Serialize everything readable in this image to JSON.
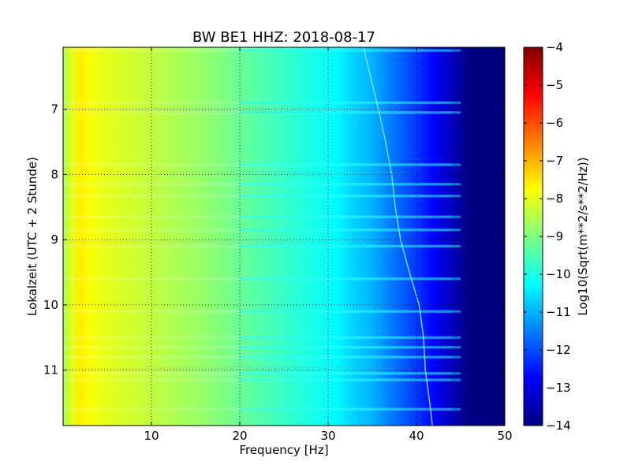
{
  "chart_data": {
    "type": "heatmap",
    "title": "BW BE1 HHZ: 2018-08-17",
    "xlabel": "Frequency [Hz]",
    "ylabel": "Lokalzeit (UTC + 2 Stunde)",
    "xlim": [
      0,
      50
    ],
    "ylim": [
      11.85,
      6.05
    ],
    "x_ticks": [
      10,
      20,
      30,
      40,
      50
    ],
    "y_ticks": [
      7,
      8,
      9,
      10,
      11
    ],
    "grid": true,
    "colorbar": {
      "label": "Log10(Sqrt(m**2/s**2/Hz))",
      "range": [
        -14,
        -4
      ],
      "ticks": [
        -14,
        -13,
        -12,
        -11,
        -10,
        -9,
        -8,
        -7,
        -6,
        -5,
        -4
      ],
      "colormap": "jet"
    },
    "spectral_profile": {
      "frequency_hz": [
        0,
        1,
        2,
        3,
        5,
        8,
        12,
        16,
        20,
        24,
        28,
        31,
        33,
        35,
        37,
        40,
        42,
        44,
        46,
        50
      ],
      "log_amplitude": [
        -8.6,
        -8.0,
        -7.6,
        -7.8,
        -8.0,
        -8.2,
        -8.5,
        -8.8,
        -9.2,
        -9.6,
        -10.0,
        -10.3,
        -10.7,
        -11.0,
        -11.5,
        -12.2,
        -12.8,
        -13.4,
        -14.0,
        -14.0
      ]
    },
    "trace_line": {
      "time_h": [
        6.05,
        6.5,
        7.0,
        7.5,
        8.0,
        8.5,
        9.0,
        9.5,
        10.0,
        10.5,
        11.0,
        11.5,
        11.85
      ],
      "frequency_hz": [
        34.0,
        34.8,
        35.7,
        36.5,
        37.2,
        37.6,
        38.2,
        39.2,
        40.3,
        40.8,
        41.0,
        41.5,
        41.8
      ]
    },
    "bright_bands_time_h": [
      6.1,
      6.9,
      7.05,
      7.85,
      8.15,
      8.33,
      8.65,
      8.85,
      9.1,
      9.6,
      10.1,
      10.5,
      10.65,
      10.8,
      11.05,
      11.15,
      11.6
    ]
  }
}
